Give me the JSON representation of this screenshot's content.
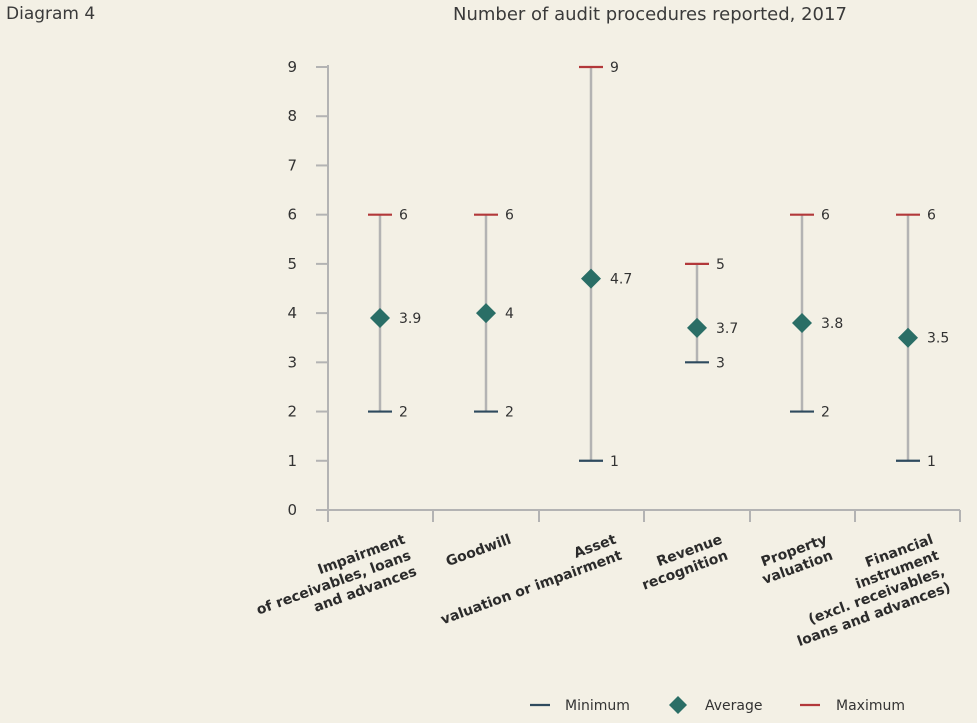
{
  "header": {
    "diagram_label": "Diagram 4",
    "title": "Number of audit procedures reported, 2017"
  },
  "colors": {
    "minimum": "#2e4a5e",
    "average": "#2a6e66",
    "maximum": "#b2383a",
    "range_line": "#b3b3b3",
    "axis": "#b3b3b3"
  },
  "chart_data": {
    "type": "scatter",
    "title": "Number of audit procedures reported, 2017",
    "xlabel": "",
    "ylabel": "",
    "ylim": [
      0,
      9
    ],
    "y_ticks": [
      0,
      1,
      2,
      3,
      4,
      5,
      6,
      7,
      8,
      9
    ],
    "grid": false,
    "legend_position": "bottom-right",
    "categories": [
      [
        "Impairment",
        "of receivables, loans",
        "and advances"
      ],
      [
        "Goodwill"
      ],
      [
        "Asset",
        "valuation or impairment"
      ],
      [
        "Revenue",
        "recognition"
      ],
      [
        "Property",
        "valuation"
      ],
      [
        "Financial",
        "instrument",
        "(excl. receivables,",
        "loans and advances)"
      ]
    ],
    "series": [
      {
        "name": "Minimum",
        "values": [
          2,
          2,
          1,
          3,
          2,
          1
        ],
        "labels": [
          "2",
          "2",
          "1",
          "3",
          "2",
          "1"
        ]
      },
      {
        "name": "Average",
        "values": [
          3.9,
          4,
          4.7,
          3.7,
          3.8,
          3.5
        ],
        "labels": [
          "3.9",
          "4",
          "4.7",
          "3.7",
          "3.8",
          "3.5"
        ]
      },
      {
        "name": "Maximum",
        "values": [
          6,
          6,
          9,
          5,
          6,
          6
        ],
        "labels": [
          "6",
          "6",
          "9",
          "5",
          "6",
          "6"
        ]
      }
    ]
  }
}
